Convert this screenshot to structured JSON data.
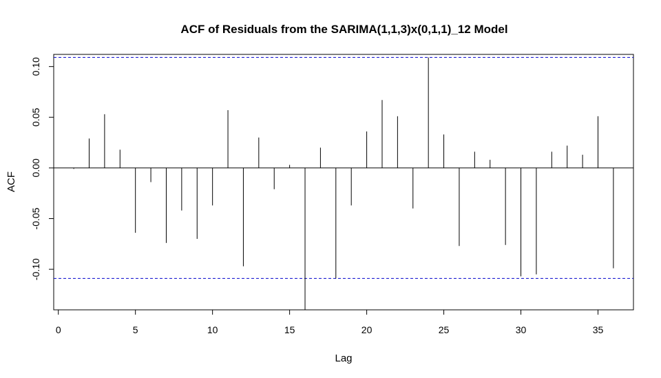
{
  "chart_data": {
    "type": "bar",
    "title": "ACF of Residuals from the SARIMA(1,1,3)x(0,1,1)_12 Model",
    "xlabel": "Lag",
    "ylabel": "ACF",
    "xlim": [
      -0.3,
      37.3
    ],
    "ylim": [
      -0.14,
      0.112
    ],
    "x_ticks": [
      0,
      5,
      10,
      15,
      20,
      25,
      30,
      35
    ],
    "x_tick_labels": [
      "0",
      "5",
      "10",
      "15",
      "20",
      "25",
      "30",
      "35"
    ],
    "y_ticks": [
      -0.1,
      -0.05,
      0,
      0.05,
      0.1
    ],
    "y_tick_labels": [
      "-0.10",
      "-0.05",
      "0.00",
      "0.05",
      "0.10"
    ],
    "confidence_bound": 0.109,
    "confidence_color": "#0000cc",
    "grid": false,
    "lags": [
      1,
      2,
      3,
      4,
      5,
      6,
      7,
      8,
      9,
      10,
      11,
      12,
      13,
      14,
      15,
      16,
      17,
      18,
      19,
      20,
      21,
      22,
      23,
      24,
      25,
      26,
      27,
      28,
      29,
      30,
      31,
      32,
      33,
      34,
      35,
      36
    ],
    "values": [
      -0.001,
      0.029,
      0.053,
      0.018,
      -0.064,
      -0.014,
      -0.074,
      -0.042,
      -0.07,
      -0.037,
      0.057,
      -0.097,
      0.03,
      -0.021,
      0.003,
      -0.14,
      0.02,
      -0.109,
      -0.037,
      0.036,
      0.067,
      0.051,
      -0.04,
      0.109,
      0.033,
      -0.077,
      0.016,
      0.008,
      -0.076,
      -0.107,
      -0.105,
      0.016,
      0.022,
      0.013,
      0.051,
      -0.099
    ]
  }
}
